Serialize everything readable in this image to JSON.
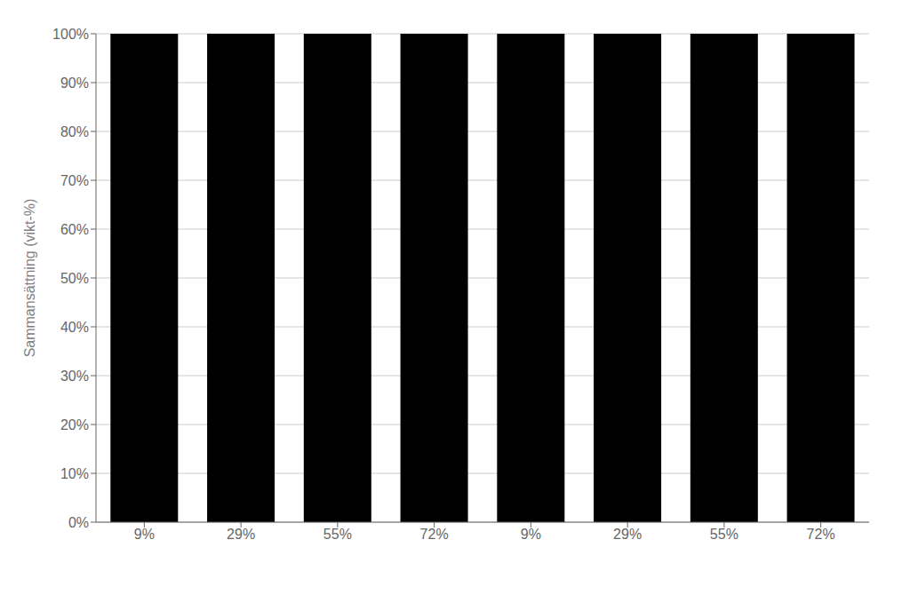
{
  "chart_data": {
    "type": "bar",
    "categories": [
      "9%",
      "29%",
      "55%",
      "72%",
      "9%",
      "29%",
      "55%",
      "72%"
    ],
    "values": [
      100,
      100,
      100,
      100,
      100,
      100,
      100,
      100
    ],
    "color": "#000000",
    "y_label": "Sammansättning (vikt-%)",
    "ylim": [
      0,
      100
    ],
    "yticks": [
      {
        "value": 0,
        "label": "0%"
      },
      {
        "value": 10,
        "label": "10%"
      },
      {
        "value": 20,
        "label": "20%"
      },
      {
        "value": 30,
        "label": "30%"
      },
      {
        "value": 40,
        "label": "40%"
      },
      {
        "value": 50,
        "label": "50%"
      },
      {
        "value": 60,
        "label": "60%"
      },
      {
        "value": 70,
        "label": "70%"
      },
      {
        "value": 80,
        "label": "80%"
      },
      {
        "value": 90,
        "label": "90%"
      },
      {
        "value": 100,
        "label": "100%"
      }
    ],
    "grid": true
  }
}
